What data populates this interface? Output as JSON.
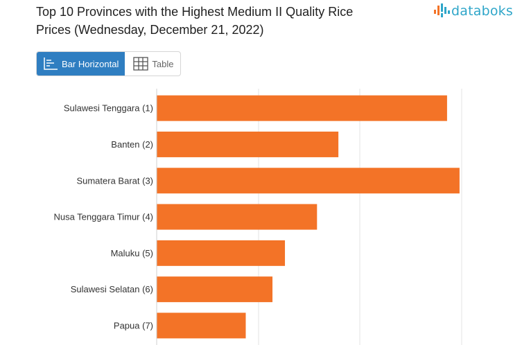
{
  "title": {
    "line1": "Top 10 Provinces with the Highest Medium II Quality Rice",
    "line2": "Prices (Wednesday, December 21, 2022)"
  },
  "logo": {
    "text": "databoks",
    "icon": "bar-chart-logo-icon"
  },
  "view_toggle": {
    "bar_label": "Bar Horizontal",
    "table_label": "Table",
    "bar_icon": "bar-horizontal-icon",
    "table_icon": "table-grid-icon"
  },
  "colors": {
    "bar": "#f37327",
    "accent": "#2f7ec1",
    "logo": "#2fa6c9",
    "grid": "#e3e3e3"
  },
  "chart_data": {
    "type": "bar",
    "orientation": "horizontal",
    "categories": [
      "Sulawesi Tenggara (1)",
      "Banten (2)",
      "Sumatera Barat (3)",
      "Nusa Tenggara Timur (4)",
      "Maluku (5)",
      "Sulawesi Selatan (6)",
      "Papua (7)"
    ],
    "values": [
      14080,
      13470,
      14150,
      13350,
      13170,
      13100,
      12950
    ],
    "xlim": [
      12450,
      14450
    ],
    "grid": true
  }
}
